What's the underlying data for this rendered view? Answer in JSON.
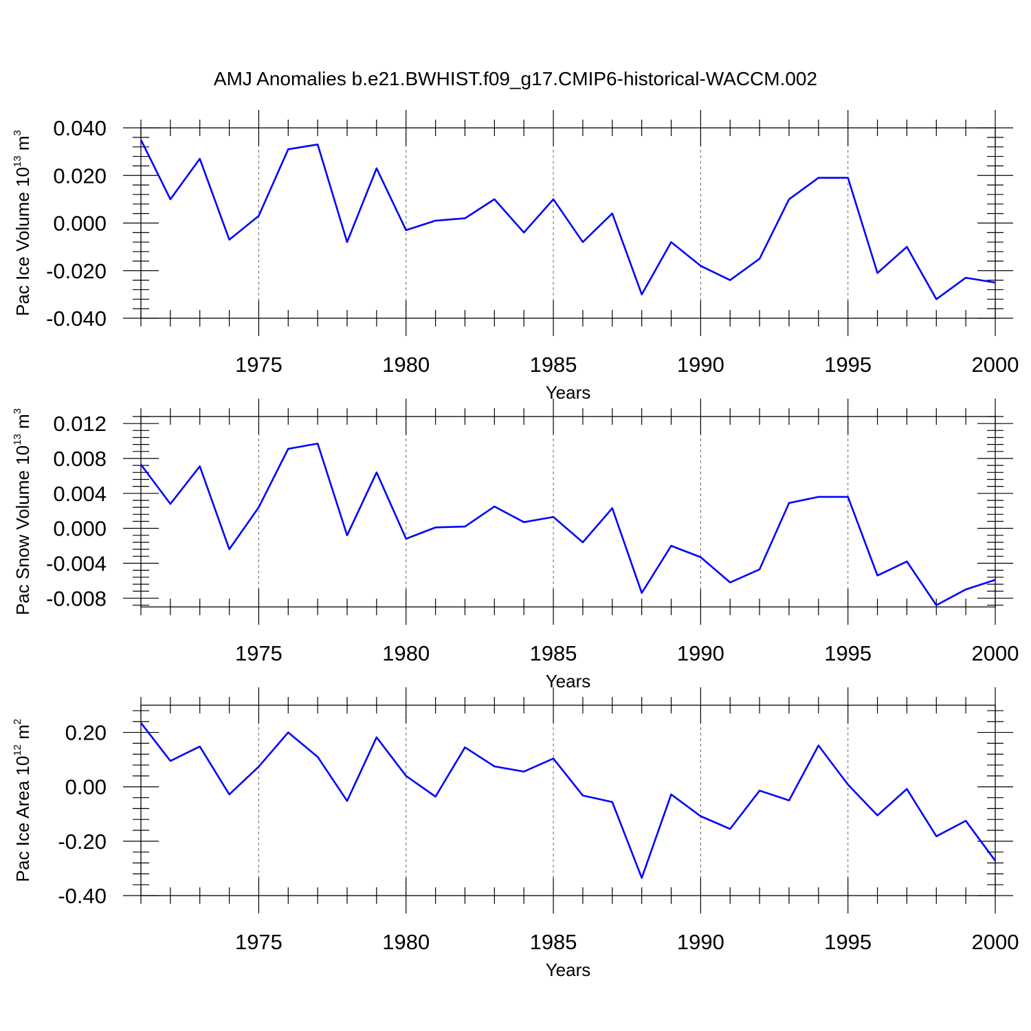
{
  "figure": {
    "title": "AMJ Anomalies b.e21.BWHIST.f09_g17.CMIP6-historical-WACCM.002"
  },
  "colors": {
    "line": "#0000ff",
    "grid": "#666666",
    "frame": "#000000"
  },
  "chart_data": [
    {
      "type": "line",
      "id": "ice-volume",
      "xlabel": "Years",
      "ylabel_main": "Pac Ice Volume 10",
      "ylabel_exp": "13",
      "ylabel_unit": " m",
      "ylabel_unit_exp": "3",
      "xlim": [
        1971,
        2000
      ],
      "ylim": [
        -0.04,
        0.04
      ],
      "xticks": [
        1975,
        1980,
        1985,
        1990,
        1995,
        2000
      ],
      "xtick_labels": [
        "1975",
        "1980",
        "1985",
        "1990",
        "1995",
        "2000"
      ],
      "yticks": [
        0.04,
        0.02,
        0.0,
        -0.02,
        -0.04
      ],
      "ytick_labels": [
        "0.040",
        "0.020",
        "0.000",
        "-0.020",
        "-0.040"
      ],
      "grid": "vertical dashed at major x ticks",
      "x": [
        1971,
        1972,
        1973,
        1974,
        1975,
        1976,
        1977,
        1978,
        1979,
        1980,
        1981,
        1982,
        1983,
        1984,
        1985,
        1986,
        1987,
        1988,
        1989,
        1990,
        1991,
        1992,
        1993,
        1994,
        1995,
        1996,
        1997,
        1998,
        1999,
        2000
      ],
      "values": [
        0.035,
        0.01,
        0.027,
        -0.007,
        0.003,
        0.031,
        0.033,
        -0.008,
        0.023,
        -0.003,
        0.001,
        0.002,
        0.01,
        -0.004,
        0.01,
        -0.008,
        0.004,
        -0.03,
        -0.008,
        -0.018,
        -0.024,
        -0.015,
        0.01,
        0.019,
        0.019,
        -0.021,
        -0.01,
        -0.032,
        -0.023,
        -0.025
      ]
    },
    {
      "type": "line",
      "id": "snow-volume",
      "xlabel": "Years",
      "ylabel_main": "Pac Snow Volume 10",
      "ylabel_exp": "13",
      "ylabel_unit": " m",
      "ylabel_unit_exp": "3",
      "xlim": [
        1971,
        2000
      ],
      "ylim": [
        -0.009,
        0.0128
      ],
      "xticks": [
        1975,
        1980,
        1985,
        1990,
        1995,
        2000
      ],
      "xtick_labels": [
        "1975",
        "1980",
        "1985",
        "1990",
        "1995",
        "2000"
      ],
      "yticks": [
        0.012,
        0.008,
        0.004,
        0.0,
        -0.004,
        -0.008
      ],
      "ytick_labels": [
        "0.012",
        "0.008",
        "0.004",
        "0.000",
        "-0.004",
        "-0.008"
      ],
      "grid": "vertical dashed at major x ticks",
      "x": [
        1971,
        1972,
        1973,
        1974,
        1975,
        1976,
        1977,
        1978,
        1979,
        1980,
        1981,
        1982,
        1983,
        1984,
        1985,
        1986,
        1987,
        1988,
        1989,
        1990,
        1991,
        1992,
        1993,
        1994,
        1995,
        1996,
        1997,
        1998,
        1999,
        2000
      ],
      "values": [
        0.0073,
        0.0028,
        0.0071,
        -0.0024,
        0.0024,
        0.0091,
        0.0097,
        -0.0008,
        0.0064,
        -0.0012,
        0.0001,
        0.0002,
        0.0025,
        0.0007,
        0.0013,
        -0.0016,
        0.0023,
        -0.0074,
        -0.002,
        -0.0033,
        -0.0062,
        -0.0047,
        0.0029,
        0.0036,
        0.0036,
        -0.0054,
        -0.0038,
        -0.0088,
        -0.007,
        -0.0059
      ]
    },
    {
      "type": "line",
      "id": "ice-area",
      "xlabel": "Years",
      "ylabel_main": "Pac Ice Area 10",
      "ylabel_exp": "12",
      "ylabel_unit": " m",
      "ylabel_unit_exp": "2",
      "xlim": [
        1971,
        2000
      ],
      "ylim": [
        -0.4,
        0.3
      ],
      "xticks": [
        1975,
        1980,
        1985,
        1990,
        1995,
        2000
      ],
      "xtick_labels": [
        "1975",
        "1980",
        "1985",
        "1990",
        "1995",
        "2000"
      ],
      "yticks": [
        0.2,
        0.0,
        -0.2,
        -0.4
      ],
      "ytick_labels": [
        "0.20",
        "0.00",
        "-0.20",
        "-0.40"
      ],
      "grid": "vertical dashed at major x ticks",
      "x": [
        1971,
        1972,
        1973,
        1974,
        1975,
        1976,
        1977,
        1978,
        1979,
        1980,
        1981,
        1982,
        1983,
        1984,
        1985,
        1986,
        1987,
        1988,
        1989,
        1990,
        1991,
        1992,
        1993,
        1994,
        1995,
        1996,
        1997,
        1998,
        1999,
        2000
      ],
      "values": [
        0.235,
        0.095,
        0.148,
        -0.028,
        0.074,
        0.2,
        0.11,
        -0.052,
        0.182,
        0.04,
        -0.036,
        0.145,
        0.075,
        0.056,
        0.104,
        -0.032,
        -0.056,
        -0.335,
        -0.028,
        -0.108,
        -0.155,
        -0.014,
        -0.05,
        0.152,
        0.008,
        -0.105,
        -0.008,
        -0.182,
        -0.125,
        -0.272
      ]
    }
  ]
}
